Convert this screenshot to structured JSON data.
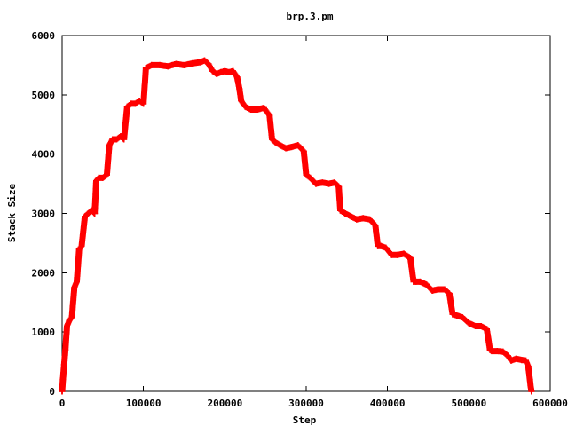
{
  "chart_data": {
    "type": "scatter",
    "title": "brp.3.pm",
    "xlabel": "Step",
    "ylabel": "Stack Size",
    "xlim": [
      0,
      600000
    ],
    "ylim": [
      0,
      6000
    ],
    "xticks": [
      0,
      100000,
      200000,
      300000,
      400000,
      500000,
      600000
    ],
    "yticks": [
      0,
      1000,
      2000,
      3000,
      4000,
      5000,
      6000
    ],
    "grid": false,
    "legend": "none",
    "marker": "plus",
    "series": [
      {
        "color": "#ff0000",
        "x": [
          0,
          1000,
          2500,
          4000,
          6000,
          9000,
          12000,
          15000,
          18000,
          21000,
          24000,
          28000,
          32000,
          36000,
          40000,
          42000,
          45000,
          50000,
          55000,
          58000,
          62000,
          67000,
          72000,
          76000,
          80000,
          85000,
          90000,
          95000,
          100000,
          103000,
          110000,
          120000,
          130000,
          140000,
          150000,
          160000,
          170000,
          175000,
          180000,
          185000,
          190000,
          195000,
          200000,
          205000,
          210000,
          215000,
          218000,
          220000,
          225000,
          232000,
          240000,
          248000,
          255000,
          258000,
          262000,
          268000,
          275000,
          282000,
          290000,
          297000,
          300000,
          305000,
          312000,
          320000,
          328000,
          335000,
          340000,
          342000,
          348000,
          355000,
          362000,
          370000,
          378000,
          385000,
          388000,
          392000,
          398000,
          405000,
          412000,
          420000,
          428000,
          432000,
          435000,
          440000,
          448000,
          455000,
          462000,
          470000,
          476000,
          480000,
          485000,
          492000,
          500000,
          508000,
          515000,
          522000,
          526000,
          528000,
          535000,
          542000,
          548000,
          552000,
          558000,
          565000,
          570000,
          573000,
          575000,
          576000,
          577000
        ],
        "y": [
          0,
          200,
          450,
          700,
          1100,
          1200,
          1250,
          1750,
          1850,
          2400,
          2450,
          2950,
          3000,
          3050,
          3000,
          3550,
          3600,
          3600,
          3650,
          4150,
          4250,
          4250,
          4300,
          4250,
          4800,
          4850,
          4850,
          4900,
          4850,
          5450,
          5500,
          5500,
          5480,
          5520,
          5500,
          5530,
          5550,
          5580,
          5520,
          5400,
          5350,
          5380,
          5400,
          5380,
          5400,
          5300,
          5100,
          4900,
          4800,
          4750,
          4750,
          4780,
          4650,
          4250,
          4200,
          4150,
          4100,
          4120,
          4150,
          4050,
          3650,
          3600,
          3500,
          3520,
          3500,
          3520,
          3450,
          3050,
          3000,
          2950,
          2900,
          2920,
          2900,
          2800,
          2450,
          2450,
          2420,
          2300,
          2300,
          2320,
          2250,
          1850,
          1850,
          1850,
          1800,
          1700,
          1720,
          1720,
          1650,
          1300,
          1280,
          1250,
          1150,
          1100,
          1100,
          1050,
          700,
          680,
          680,
          670,
          600,
          520,
          550,
          530,
          520,
          420,
          200,
          80,
          0
        ]
      }
    ]
  }
}
